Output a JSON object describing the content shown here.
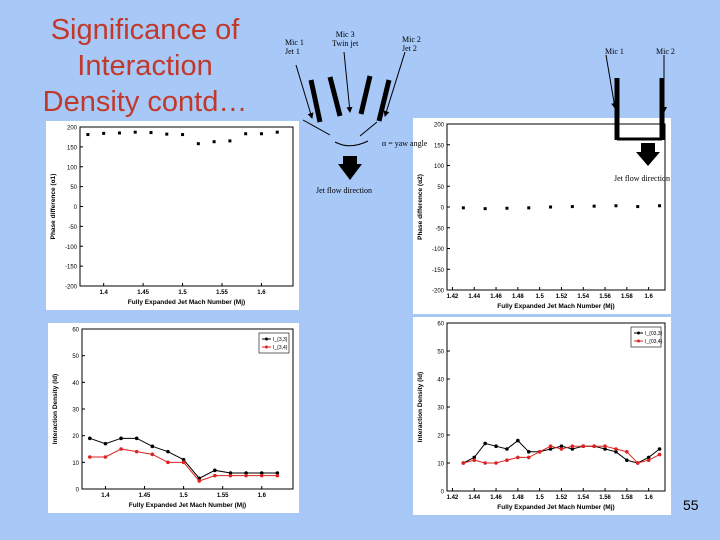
{
  "slide": {
    "title_lines": [
      "Significance of",
      "Interaction",
      "Density contd…"
    ],
    "page_number": "55"
  },
  "diagram": {
    "left_labels": {
      "mic1_jet1": [
        "Mic 1",
        "Jet 1"
      ],
      "mic3_twin": [
        "Mic 3",
        "Twin jet"
      ],
      "mic2_jet2": [
        "Mic 2",
        "Jet 2"
      ]
    },
    "yaw_label": "α = yaw angle",
    "left_flow": "Jet flow direction",
    "right_mic1": "Mic 1",
    "right_mic2": "Mic 2",
    "right_flow": "Jet flow direction"
  },
  "chart_data": [
    {
      "type": "scatter",
      "title": "",
      "xlabel": "Fully Expanded Jet Mach Number (Mj)",
      "ylabel": "Phase difference (α1)",
      "xlim": [
        1.37,
        1.64
      ],
      "ylim": [
        -200,
        200
      ],
      "xticks": [
        "1.4",
        "1.45",
        "1.5",
        "1.55",
        "1.6"
      ],
      "yticks": [
        "200",
        "150",
        "100",
        "50",
        "0",
        "-50",
        "-100",
        "-150",
        "-200"
      ],
      "series": [
        {
          "x": [
            1.38,
            1.4,
            1.42,
            1.44,
            1.46,
            1.48,
            1.5,
            1.52,
            1.54,
            1.56,
            1.58,
            1.6,
            1.62
          ],
          "values": [
            181,
            184,
            185,
            187,
            186,
            182,
            181,
            158,
            163,
            165,
            183,
            183,
            187
          ]
        }
      ]
    },
    {
      "type": "scatter",
      "title": "",
      "xlabel": "Fully Expanded Jet Mach Number (Mj)",
      "ylabel": "Phase difference (α2)",
      "xlim": [
        1.415,
        1.615
      ],
      "ylim": [
        -200,
        200
      ],
      "xticks": [
        "1.42",
        "1.44",
        "1.46",
        "1.48",
        "1.5",
        "1.52",
        "1.54",
        "1.56",
        "1.58",
        "1.6"
      ],
      "yticks": [
        "200",
        "150",
        "100",
        "50",
        "0",
        "-50",
        "-100",
        "-150",
        "-200"
      ],
      "series": [
        {
          "x": [
            1.43,
            1.45,
            1.47,
            1.49,
            1.51,
            1.53,
            1.55,
            1.57,
            1.59,
            1.61
          ],
          "values": [
            -2,
            -4,
            -3,
            -2,
            0,
            1,
            2,
            3,
            1,
            3
          ]
        }
      ]
    },
    {
      "type": "line",
      "title": "",
      "xlabel": "Fully Expanded Jet Mach Number (Mj)",
      "ylabel": "Interaction Density (Id)",
      "xlim": [
        1.37,
        1.64
      ],
      "ylim": [
        0,
        60
      ],
      "xticks": [
        "1.4",
        "1.45",
        "1.5",
        "1.55",
        "1.6"
      ],
      "yticks": [
        "60",
        "50",
        "40",
        "30",
        "20",
        "10",
        "0"
      ],
      "legend": "top-right",
      "x": [
        1.38,
        1.4,
        1.42,
        1.44,
        1.46,
        1.48,
        1.5,
        1.52,
        1.54,
        1.56,
        1.58,
        1.6,
        1.62
      ],
      "series": [
        {
          "name": "I_{3,3}",
          "color": "#000000",
          "values": [
            19,
            17,
            19,
            19,
            16,
            14,
            11,
            4,
            7,
            6,
            6,
            6,
            6
          ]
        },
        {
          "name": "I_{3,4}",
          "color": "#dd2222",
          "values": [
            12,
            12,
            15,
            14,
            13,
            10,
            10,
            3,
            5,
            5,
            5,
            5,
            5
          ]
        }
      ]
    },
    {
      "type": "line",
      "title": "",
      "xlabel": "Fully Expanded Jet Mach Number (Mj)",
      "ylabel": "Interaction Density (Id)",
      "xlim": [
        1.415,
        1.615
      ],
      "ylim": [
        0,
        60
      ],
      "xticks": [
        "1.42",
        "1.44",
        "1.46",
        "1.48",
        "1.5",
        "1.52",
        "1.54",
        "1.56",
        "1.58",
        "1.6"
      ],
      "yticks": [
        "60",
        "50",
        "40",
        "30",
        "20",
        "10",
        "0"
      ],
      "legend": "top-right",
      "x": [
        1.43,
        1.44,
        1.45,
        1.46,
        1.47,
        1.48,
        1.49,
        1.5,
        1.51,
        1.52,
        1.53,
        1.54,
        1.55,
        1.56,
        1.57,
        1.58,
        1.59,
        1.6,
        1.61
      ],
      "series": [
        {
          "name": "I_{03,3}",
          "color": "#000000",
          "values": [
            10,
            12,
            17,
            16,
            15,
            18,
            14,
            14,
            15,
            16,
            15,
            16,
            16,
            15,
            14,
            11,
            10,
            12,
            15
          ]
        },
        {
          "name": "I_{03,4}",
          "color": "#dd2222",
          "values": [
            10,
            11,
            10,
            10,
            11,
            12,
            12,
            14,
            16,
            15,
            16,
            16,
            16,
            16,
            15,
            14,
            10,
            11,
            13
          ]
        }
      ]
    }
  ]
}
